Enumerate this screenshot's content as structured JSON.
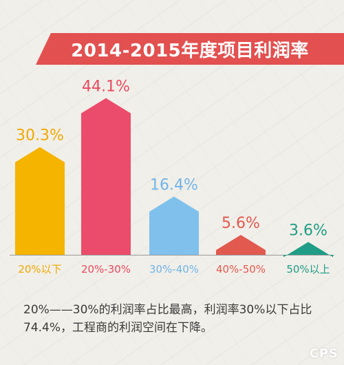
{
  "title": "2014-2015年度项目利润率",
  "caption": "20%——30%的利润率占比最高，利润率30%以下占比74.4%，工程商的利润空间在下降。",
  "watermark": "CPS",
  "chart_data": {
    "type": "bar",
    "title": "2014-2015年度项目利润率",
    "categories": [
      "20%以下",
      "20%-30%",
      "30%-40%",
      "40%-50%",
      "50%以上"
    ],
    "values": [
      30.3,
      44.1,
      16.4,
      5.6,
      3.6
    ],
    "value_labels": [
      "30.3%",
      "44.1%",
      "16.4%",
      "5.6%",
      "3.6%"
    ],
    "colors": [
      "#f4b400",
      "#ec4c6b",
      "#7fc1ec",
      "#e25950",
      "#1f9d86"
    ],
    "label_colors": [
      "#f0a800",
      "#e8495f",
      "#6fb4e8",
      "#e25950",
      "#1f9d86"
    ],
    "ylim": [
      0,
      50
    ],
    "grid": false,
    "legend": "none",
    "xlabel": "",
    "ylabel": ""
  }
}
